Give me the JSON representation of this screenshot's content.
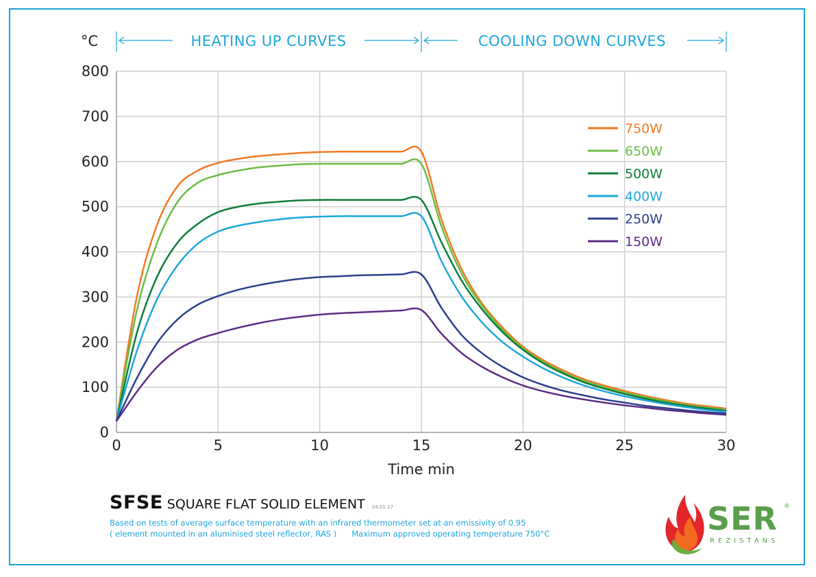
{
  "chart_data": {
    "type": "line",
    "ylabel": "°C",
    "xlabel": "Time min",
    "xlim": [
      0,
      30
    ],
    "ylim": [
      0,
      800
    ],
    "x_ticks": [
      "0",
      "5",
      "10",
      "15",
      "20",
      "25",
      "30"
    ],
    "y_ticks": [
      "0",
      "100",
      "200",
      "300",
      "400",
      "500",
      "600",
      "700",
      "800"
    ],
    "grid": true,
    "legend_position": "top-right",
    "band_labels": {
      "heating": "HEATING UP CURVES",
      "cooling": "COOLING DOWN CURVES"
    },
    "x": [
      0,
      1,
      2,
      3,
      4,
      5,
      6,
      7,
      8,
      9,
      10,
      11,
      12,
      13,
      14,
      15,
      16,
      17,
      18,
      19,
      20,
      21,
      22,
      23,
      24,
      25,
      26,
      27,
      28,
      29,
      30
    ],
    "series": [
      {
        "name": "750W",
        "color": "#f07a22",
        "values": [
          25,
          300,
          460,
          545,
          580,
          597,
          606,
          612,
          616,
          619,
          621,
          622,
          622,
          622,
          622,
          622,
          470,
          360,
          285,
          232,
          190,
          160,
          137,
          118,
          104,
          92,
          81,
          72,
          64,
          58,
          53
        ]
      },
      {
        "name": "650W",
        "color": "#6cbc45",
        "values": [
          25,
          270,
          420,
          510,
          553,
          570,
          580,
          587,
          591,
          594,
          595,
          595,
          595,
          595,
          595,
          595,
          455,
          350,
          280,
          227,
          186,
          156,
          133,
          114,
          100,
          88,
          78,
          69,
          61,
          55,
          50
        ]
      },
      {
        "name": "500W",
        "color": "#0e7d3a",
        "values": [
          25,
          220,
          345,
          420,
          462,
          488,
          500,
          507,
          511,
          514,
          515,
          515,
          515,
          515,
          515,
          515,
          420,
          335,
          272,
          222,
          183,
          153,
          130,
          111,
          97,
          85,
          75,
          66,
          59,
          53,
          48
        ]
      },
      {
        "name": "400W",
        "color": "#1ea6dc",
        "values": [
          25,
          180,
          295,
          370,
          418,
          445,
          458,
          466,
          472,
          476,
          478,
          479,
          479,
          479,
          479,
          479,
          378,
          300,
          243,
          200,
          168,
          142,
          121,
          104,
          91,
          80,
          71,
          63,
          56,
          50,
          46
        ]
      },
      {
        "name": "250W",
        "color": "#2b3f8c",
        "values": [
          25,
          120,
          198,
          250,
          283,
          302,
          316,
          326,
          334,
          340,
          344,
          346,
          348,
          349,
          350,
          350,
          275,
          215,
          175,
          145,
          122,
          105,
          92,
          82,
          73,
          66,
          59,
          54,
          49,
          45,
          42
        ]
      },
      {
        "name": "150W",
        "color": "#5b2b84",
        "values": [
          25,
          90,
          145,
          183,
          206,
          220,
          232,
          242,
          250,
          256,
          261,
          264,
          266,
          268,
          270,
          271,
          218,
          175,
          145,
          122,
          104,
          91,
          81,
          73,
          66,
          60,
          55,
          50,
          46,
          42,
          39
        ]
      }
    ]
  },
  "footer": {
    "model_code": "SFSE",
    "model_name": "SQUARE FLAT SOLID ELEMENT",
    "date": "24.01.17",
    "note_line1": "Based on tests of average surface temperature with an infrared thermometer set at an emissivity of 0.95",
    "note_line2a": "( element mounted in an aluminised steel reflector, RAS )",
    "note_line2b": "Maximum approved operating temperature 750°C"
  },
  "logo": {
    "name": "SER",
    "sub": "REZISTANS",
    "registered_mark": "®",
    "colors": {
      "text_green": "#5a9e4b",
      "flame_red": "#e3262b",
      "flame_orange": "#f26b21",
      "leaf_green": "#6cae3e"
    }
  }
}
